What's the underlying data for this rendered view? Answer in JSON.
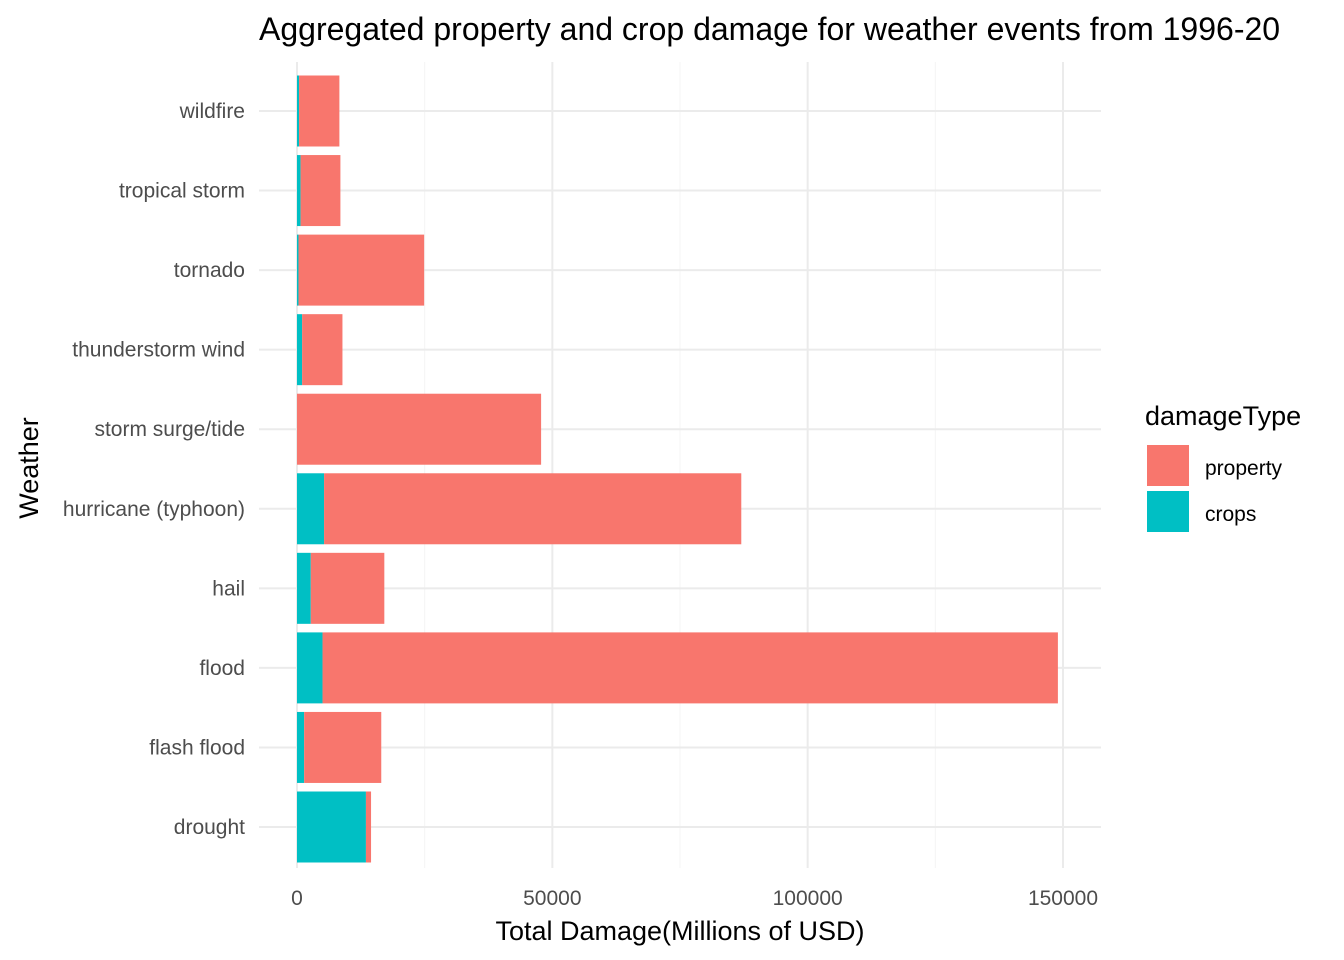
{
  "chart_data": {
    "type": "bar",
    "orientation": "horizontal",
    "stacked": true,
    "title": "Aggregated property and crop damage for weather events from 1996-20",
    "xlabel": "Total Damage(Millions of USD)",
    "ylabel": "Weather",
    "xlim": [
      0,
      157000
    ],
    "x_ticks": [
      0,
      50000,
      100000,
      150000
    ],
    "x_tick_labels": [
      "0",
      "50000",
      "100000",
      "150000"
    ],
    "categories": [
      "wildfire",
      "tropical storm",
      "tornado",
      "thunderstorm wind",
      "storm surge/tide",
      "hurricane (typhoon)",
      "hail",
      "flood",
      "flash flood",
      "drought"
    ],
    "series": [
      {
        "name": "crops",
        "color": "#00BFC4",
        "values": [
          400,
          700,
          300,
          1000,
          0,
          5300,
          2700,
          5000,
          1400,
          13500
        ]
      },
      {
        "name": "property",
        "color": "#F8766D",
        "values": [
          7900,
          7800,
          24600,
          7900,
          47800,
          81700,
          14400,
          144000,
          15100,
          1000
        ]
      }
    ],
    "legend": {
      "title": "damageType",
      "position": "right",
      "entries": [
        {
          "label": "property",
          "color": "#F8766D"
        },
        {
          "label": "crops",
          "color": "#00BFC4"
        }
      ]
    },
    "grid": true,
    "theme": "minimal"
  }
}
